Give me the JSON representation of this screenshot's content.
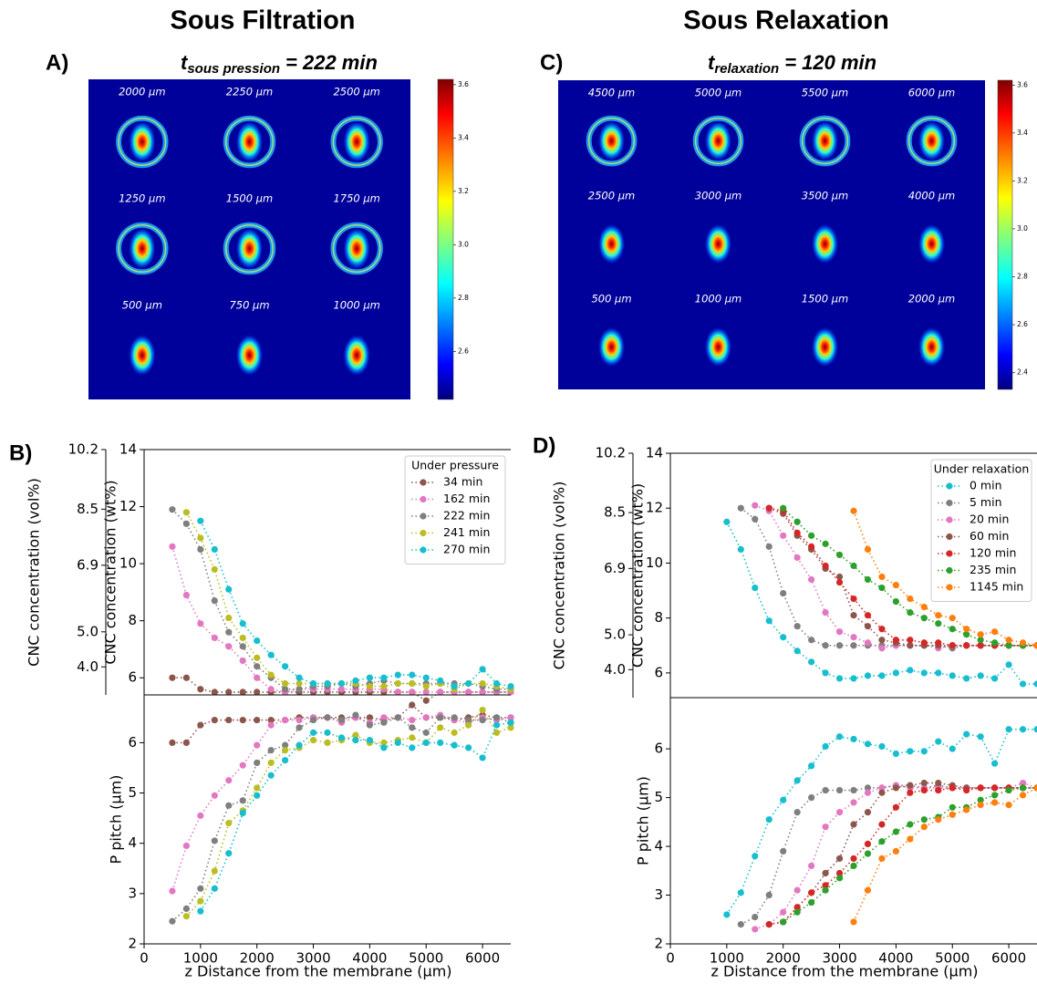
{
  "images": [
    {
      "title": "Sous Filtration",
      "label": "A)",
      "subtitle": {
        "symbol": "t",
        "subscript": "sous pression",
        "text": "= 222 min"
      },
      "positions": [
        "2000 µm",
        "2250 µm",
        "2500 µm",
        "1250 µm",
        "1500 µm",
        "1750 µm",
        "500 µm",
        "750 µm",
        "1000 µm"
      ],
      "colorbar_lim": [
        2.42,
        3.62
      ],
      "colorbar_ticks": [
        {
          "value": 2.6,
          "label": "2.6"
        },
        2.8,
        {
          "value": 3,
          "label": "3.0"
        },
        3.2,
        3.4,
        3.6
      ]
    },
    {
      "title": "Sous Relaxation",
      "label": "C)",
      "subtitle": {
        "symbol": "t",
        "subscript": "relaxation",
        "text": "= 120 min"
      },
      "positions": [
        "4500 µm",
        "5000 µm",
        "5500 µm",
        "6000 µm",
        "2500 µm",
        "3000 µm",
        "3500 µm",
        "4000 µm",
        "500 µm",
        "1000 µm",
        "1500 µm",
        "2000 µm"
      ],
      "colorbar_lim": [
        2.33,
        3.62
      ],
      "colorbar_ticks": [
        2.4,
        2.6,
        2.8,
        {
          "value": 3,
          "label": "3.0"
        },
        3.2,
        3.4,
        3.6
      ]
    }
  ],
  "chart_data": [
    {
      "type": "line",
      "panel": "B)",
      "ylabel": "CNC concentration (wt%)",
      "y2label": "CNC concentration (vol%)",
      "xlim": [
        0,
        6500
      ],
      "ylim": [
        5.4,
        14
      ],
      "yticks": [
        6,
        8,
        10,
        12,
        14
      ],
      "y2lim": [
        3.2,
        10.2
      ],
      "y2ticks": [
        {
          "value": 4,
          "label": "4.0"
        },
        {
          "value": 5,
          "label": "5.0"
        },
        6.9,
        8.5,
        10.2
      ],
      "legend_title": "Under pressure",
      "legend": "upper right",
      "x": [
        500,
        750,
        1000,
        1250,
        1500,
        1750,
        2000,
        2250,
        2500,
        2750,
        3000,
        3250,
        3500,
        3750,
        4000,
        4250,
        4500,
        4750,
        5000,
        5250,
        5500,
        5750,
        6000,
        6250,
        6500
      ],
      "series": [
        {
          "name": "34 min",
          "color": "#8c564b",
          "values": [
            6.0,
            6.0,
            5.6,
            5.5,
            5.5,
            5.5,
            5.5,
            5.5,
            5.5,
            5.5,
            5.5,
            5.5,
            5.5,
            5.5,
            5.5,
            5.5,
            5.5,
            5.5,
            5.2,
            5.5,
            5.5,
            5.5,
            5.5,
            5.5,
            5.5
          ]
        },
        {
          "name": "162 min",
          "color": "#e377c2",
          "values": [
            10.6,
            8.9,
            7.9,
            7.4,
            7.1,
            6.6,
            6.0,
            5.6,
            5.5,
            5.6,
            5.6,
            5.6,
            5.6,
            5.6,
            5.6,
            5.6,
            5.5,
            5.5,
            5.5,
            5.5,
            5.5,
            5.5,
            5.5,
            5.5,
            5.5
          ]
        },
        {
          "name": "222 min",
          "color": "#7f7f7f",
          "values": [
            11.9,
            11.4,
            10.5,
            8.7,
            7.6,
            7.1,
            6.4,
            6.0,
            5.6,
            5.6,
            5.7,
            5.7,
            5.8,
            5.7,
            5.8,
            5.9,
            5.8,
            5.8,
            5.8,
            5.8,
            5.8,
            5.8,
            5.7,
            5.6,
            5.6
          ]
        },
        {
          "name": "241 min",
          "color": "#bcbd22",
          "values": [
            null,
            11.8,
            10.9,
            9.8,
            8.1,
            7.4,
            6.7,
            6.1,
            5.8,
            5.8,
            5.8,
            5.8,
            5.8,
            5.8,
            5.7,
            5.7,
            5.8,
            5.8,
            5.7,
            5.8,
            5.6,
            5.8,
            5.8,
            5.7,
            5.6
          ]
        },
        {
          "name": "270 min",
          "color": "#17becf",
          "values": [
            null,
            null,
            11.5,
            10.5,
            9.1,
            7.9,
            7.3,
            6.8,
            6.4,
            6.0,
            5.8,
            5.8,
            5.8,
            5.9,
            6.0,
            6.0,
            6.1,
            6.1,
            6.0,
            5.9,
            5.7,
            5.8,
            6.3,
            5.8,
            5.7
          ]
        }
      ]
    },
    {
      "type": "line",
      "xlabel": "z Distance from the membrane (µm)",
      "ylabel": "P pitch (µm)",
      "xlim": [
        0,
        6500
      ],
      "ylim": [
        2,
        6.95
      ],
      "yticks": [
        2,
        3,
        4,
        5,
        6
      ],
      "xticks": [
        0,
        1000,
        2000,
        3000,
        4000,
        5000,
        6000
      ],
      "x": [
        500,
        750,
        1000,
        1250,
        1500,
        1750,
        2000,
        2250,
        2500,
        2750,
        3000,
        3250,
        3500,
        3750,
        4000,
        4250,
        4500,
        4750,
        5000,
        5250,
        5500,
        5750,
        6000,
        6250,
        6500
      ],
      "series": [
        {
          "color": "#8c564b",
          "values": [
            6.0,
            6.0,
            6.35,
            6.45,
            6.45,
            6.45,
            6.45,
            6.45,
            6.45,
            6.5,
            6.5,
            6.5,
            6.5,
            6.5,
            6.5,
            6.45,
            6.5,
            6.75,
            6.5,
            6.5,
            6.45,
            6.5,
            6.55,
            6.5,
            6.5
          ]
        },
        {
          "color": "#e377c2",
          "values": [
            3.05,
            3.95,
            4.55,
            4.95,
            5.25,
            5.55,
            5.95,
            6.35,
            6.45,
            6.45,
            6.5,
            6.5,
            6.4,
            6.5,
            6.4,
            6.5,
            6.5,
            6.45,
            6.5,
            6.55,
            6.45,
            6.4,
            6.5,
            6.45,
            6.5
          ]
        },
        {
          "color": "#7f7f7f",
          "values": [
            2.45,
            2.7,
            3.1,
            4.05,
            4.75,
            4.85,
            5.6,
            5.85,
            5.95,
            6.3,
            6.45,
            6.5,
            6.45,
            6.55,
            6.35,
            6.4,
            6.5,
            6.3,
            6.2,
            6.5,
            6.5,
            6.45,
            6.45,
            6.5,
            6.4
          ]
        },
        {
          "color": "#bcbd22",
          "values": [
            null,
            2.55,
            2.85,
            3.45,
            4.4,
            4.65,
            5.1,
            5.6,
            5.85,
            5.9,
            6.05,
            6.0,
            6.05,
            6.15,
            6.0,
            6.0,
            6.05,
            6.1,
            6.0,
            6.3,
            6.2,
            6.35,
            6.65,
            6.2,
            6.3
          ]
        },
        {
          "color": "#17becf",
          "values": [
            null,
            null,
            2.65,
            3.1,
            3.8,
            4.6,
            4.95,
            5.35,
            5.65,
            5.95,
            6.2,
            6.2,
            6.1,
            6.05,
            6.05,
            5.9,
            6.0,
            5.9,
            6.0,
            6.0,
            5.95,
            5.9,
            5.7,
            6.35,
            6.4
          ]
        }
      ]
    },
    {
      "type": "line",
      "panel": "D)",
      "ylabel": "CNC concentration (wt%)",
      "y2label": "CNC concentration (vol%)",
      "xlim": [
        0,
        6500
      ],
      "ylim": [
        5.1,
        14
      ],
      "yticks": [
        6,
        8,
        10,
        12,
        14
      ],
      "y2lim": [
        3.2,
        10.2
      ],
      "y2ticks": [
        {
          "value": 4,
          "label": "4.0"
        },
        {
          "value": 5,
          "label": "5.0"
        },
        6.9,
        8.5,
        10.2
      ],
      "legend_title": "Under relaxation",
      "legend": "upper right",
      "x": [
        1000,
        1250,
        1500,
        1750,
        2000,
        2250,
        2500,
        2750,
        3000,
        3250,
        3500,
        3750,
        4000,
        4250,
        4500,
        4750,
        5000,
        5250,
        5500,
        5750,
        6000,
        6250,
        6500
      ],
      "series": [
        {
          "name": "0 min",
          "color": "#17becf",
          "values": [
            11.5,
            10.5,
            9.1,
            7.9,
            7.3,
            6.8,
            6.4,
            6.0,
            5.8,
            5.8,
            5.9,
            5.9,
            6.0,
            6.1,
            6.0,
            6.0,
            5.9,
            5.8,
            5.9,
            5.8,
            6.3,
            5.6,
            5.6
          ]
        },
        {
          "name": "5 min",
          "color": "#7f7f7f",
          "values": [
            null,
            12.0,
            11.6,
            10.6,
            8.9,
            7.7,
            7.2,
            7.0,
            7.0,
            7.0,
            7.0,
            7.0,
            7.0,
            7.0,
            7.0,
            7.0,
            6.9,
            7.0,
            7.0,
            7.0,
            7.0,
            7.0,
            7.0
          ]
        },
        {
          "name": "20 min",
          "color": "#e377c2",
          "values": [
            null,
            null,
            12.1,
            11.9,
            11.0,
            10.2,
            9.4,
            8.2,
            7.5,
            7.3,
            7.1,
            6.9,
            7.0,
            7.0,
            7.0,
            6.9,
            7.0,
            7.0,
            7.0,
            7.0,
            7.0,
            7.0,
            7.0
          ]
        },
        {
          "name": "60 min",
          "color": "#8c564b",
          "values": [
            null,
            null,
            null,
            12.0,
            11.8,
            11.0,
            10.5,
            9.8,
            9.5,
            8.1,
            7.7,
            7.2,
            7.1,
            7.0,
            7.0,
            7.0,
            7.0,
            7.0,
            7.0,
            7.0,
            7.0,
            7.0,
            7.0
          ]
        },
        {
          "name": "120 min",
          "color": "#d62728",
          "values": [
            null,
            null,
            null,
            12.0,
            11.9,
            11.1,
            10.6,
            9.9,
            9.3,
            8.7,
            8.1,
            7.6,
            7.2,
            7.2,
            7.1,
            7.1,
            7.0,
            7.0,
            7.0,
            7.0,
            7.0,
            7.0,
            7.0
          ]
        },
        {
          "name": "235 min",
          "color": "#2ca02c",
          "values": [
            null,
            null,
            null,
            null,
            12.0,
            11.5,
            11.0,
            10.7,
            10.3,
            9.9,
            9.4,
            9.1,
            8.6,
            8.2,
            8.0,
            7.8,
            7.6,
            7.4,
            7.2,
            7.1,
            7.0,
            7.0,
            7.0
          ]
        },
        {
          "name": "1145 min",
          "color": "#ff7f0e",
          "values": [
            null,
            null,
            null,
            null,
            null,
            null,
            null,
            null,
            null,
            11.9,
            10.5,
            9.5,
            9.2,
            8.7,
            8.4,
            8.1,
            8.0,
            7.6,
            7.4,
            7.5,
            7.2,
            7.1,
            7.0
          ]
        }
      ]
    },
    {
      "type": "line",
      "xlabel": "z Distance from the membrane (µm)",
      "ylabel": "P pitch (µm)",
      "xlim": [
        0,
        6500
      ],
      "ylim": [
        2,
        7.05
      ],
      "yticks": [
        2,
        3,
        4,
        5,
        6
      ],
      "xticks": [
        0,
        1000,
        2000,
        3000,
        4000,
        5000,
        6000
      ],
      "x": [
        1000,
        1250,
        1500,
        1750,
        2000,
        2250,
        2500,
        2750,
        3000,
        3250,
        3500,
        3750,
        4000,
        4250,
        4500,
        4750,
        5000,
        5250,
        5500,
        5750,
        6000,
        6250,
        6500
      ],
      "series": [
        {
          "color": "#17becf",
          "values": [
            2.6,
            3.05,
            3.8,
            4.55,
            4.95,
            5.35,
            5.65,
            6.05,
            6.25,
            6.2,
            6.1,
            6.05,
            5.9,
            5.95,
            5.95,
            6.15,
            6.0,
            6.3,
            6.25,
            5.7,
            6.4,
            6.4,
            6.4
          ]
        },
        {
          "color": "#7f7f7f",
          "values": [
            null,
            2.4,
            2.55,
            3.0,
            3.9,
            4.7,
            5.0,
            5.15,
            5.15,
            5.15,
            5.2,
            5.2,
            5.25,
            5.25,
            5.2,
            5.25,
            5.2,
            5.2,
            5.2,
            5.2,
            5.2,
            5.2,
            5.2
          ]
        },
        {
          "color": "#e377c2",
          "values": [
            null,
            null,
            2.3,
            2.4,
            2.65,
            3.1,
            3.6,
            4.4,
            4.7,
            4.9,
            5.1,
            5.2,
            5.25,
            5.2,
            5.2,
            5.2,
            5.2,
            5.2,
            5.2,
            5.2,
            5.2,
            5.3,
            5.2
          ]
        },
        {
          "color": "#8c564b",
          "values": [
            null,
            null,
            null,
            2.4,
            2.45,
            2.75,
            3.05,
            3.45,
            3.75,
            4.45,
            4.7,
            5.1,
            5.2,
            5.25,
            5.3,
            5.3,
            5.25,
            5.2,
            5.2,
            5.2,
            5.2,
            5.2,
            5.2
          ]
        },
        {
          "color": "#d62728",
          "values": [
            null,
            null,
            null,
            2.4,
            2.45,
            2.75,
            3.05,
            3.2,
            3.45,
            3.75,
            4.05,
            4.45,
            4.8,
            5.1,
            5.15,
            5.15,
            5.2,
            5.15,
            5.2,
            5.2,
            5.2,
            5.2,
            5.2
          ]
        },
        {
          "color": "#2ca02c",
          "values": [
            null,
            null,
            null,
            null,
            2.45,
            2.65,
            2.85,
            3.1,
            3.35,
            3.6,
            3.85,
            4.1,
            4.3,
            4.45,
            4.55,
            4.6,
            4.8,
            4.8,
            4.95,
            5.05,
            5.15,
            5.2,
            5.2
          ]
        },
        {
          "color": "#ff7f0e",
          "values": [
            null,
            null,
            null,
            null,
            null,
            null,
            null,
            null,
            null,
            2.45,
            3.1,
            3.75,
            3.9,
            4.15,
            4.4,
            4.55,
            4.65,
            4.75,
            4.85,
            4.9,
            4.85,
            5.05,
            5.2
          ]
        }
      ]
    }
  ]
}
